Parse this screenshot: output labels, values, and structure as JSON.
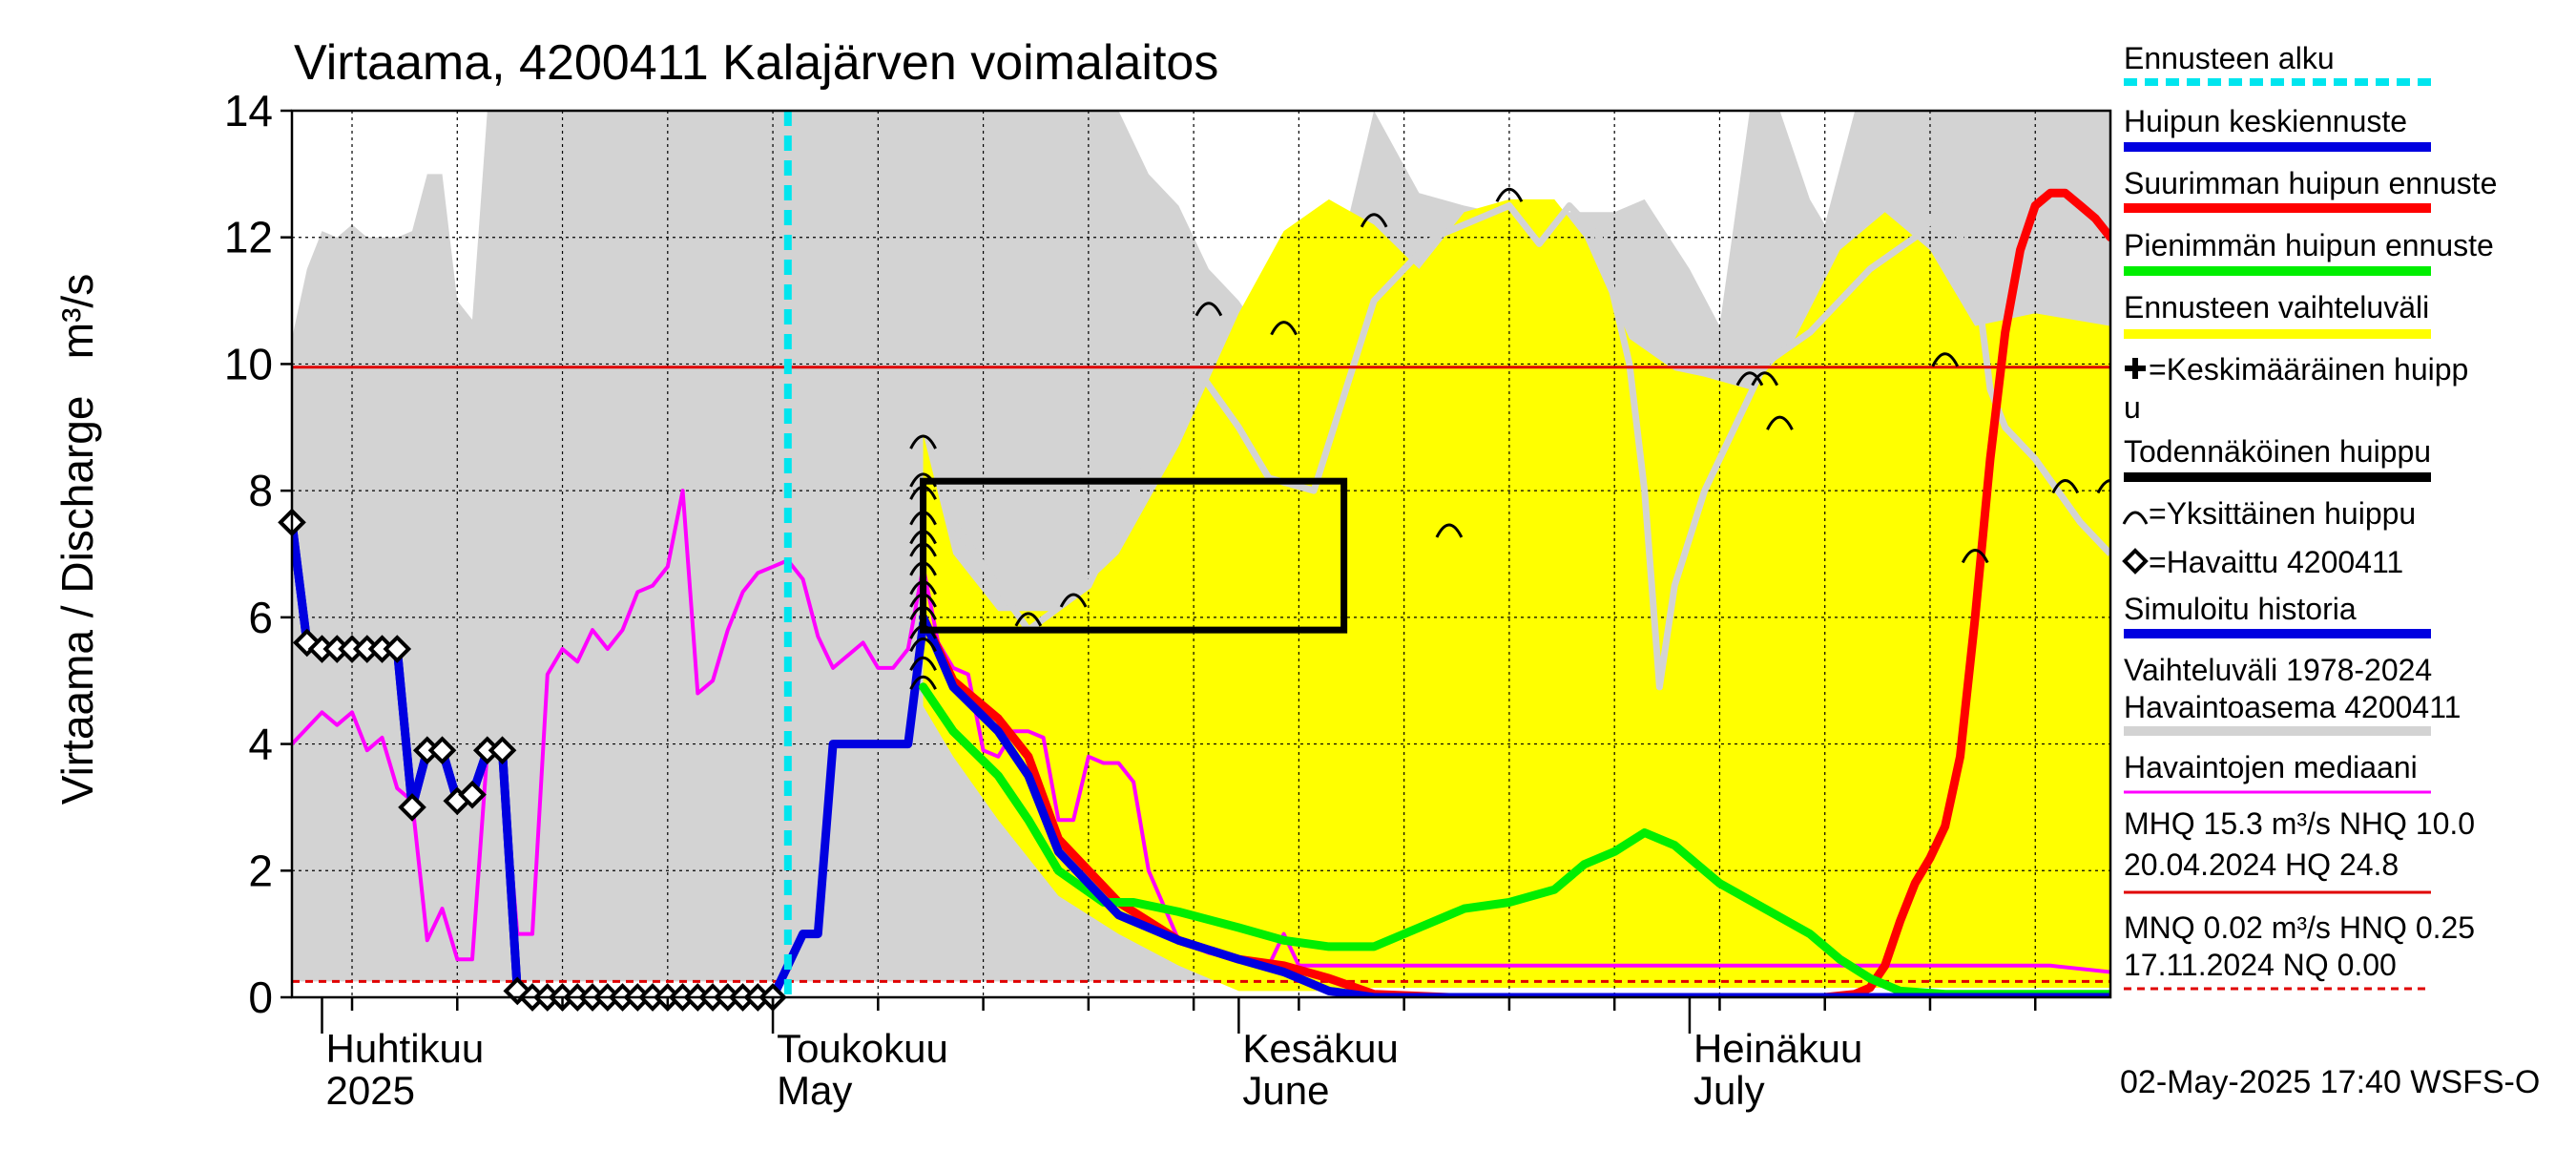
{
  "chart_data": {
    "type": "line",
    "title": "Virtaama, 4200411 Kalajärven voimalaitos",
    "ylabel": "Virtaama / Discharge   m³/s",
    "ylim": [
      0,
      14
    ],
    "yticks": [
      0,
      2,
      4,
      6,
      8,
      10,
      12,
      14
    ],
    "xlim": [
      "2025-03-30",
      "2025-07-29"
    ],
    "month_labels": [
      {
        "date": "2025-04-01",
        "fi": "Huhtikuu",
        "en": "2025"
      },
      {
        "date": "2025-05-01",
        "fi": "Toukokuu",
        "en": "May"
      },
      {
        "date": "2025-06-01",
        "fi": "Kesäkuu",
        "en": "June"
      },
      {
        "date": "2025-07-01",
        "fi": "Heinäkuu",
        "en": "July"
      }
    ],
    "grid": true,
    "reference_lines": [
      {
        "name": "MHQ 15.3 m³/s NHQ 10.0",
        "value": 9.95,
        "color": "#e00000",
        "style": "solid"
      },
      {
        "name": "MNQ 0.02 m³/s HNQ 0.25",
        "value": 0.25,
        "color": "#e00000",
        "style": "dashed"
      }
    ],
    "forecast_start": "2025-05-02",
    "likely_peak_box": {
      "x0": "2025-05-11",
      "x1": "2025-06-08",
      "y0": 5.8,
      "y1": 8.15
    },
    "observation_band_1978_2024": {
      "x": [
        "2025-03-30",
        "2025-03-31",
        "2025-04-01",
        "2025-04-02",
        "2025-04-03",
        "2025-04-04",
        "2025-04-05",
        "2025-04-06",
        "2025-04-07",
        "2025-04-08",
        "2025-04-09",
        "2025-04-10",
        "2025-04-11",
        "2025-04-12",
        "2025-04-13",
        "2025-04-14",
        "2025-04-15",
        "2025-04-20",
        "2025-04-25",
        "2025-05-01",
        "2025-05-05",
        "2025-05-10",
        "2025-05-15",
        "2025-05-20",
        "2025-05-24",
        "2025-05-26",
        "2025-05-28",
        "2025-05-30",
        "2025-06-01",
        "2025-06-03",
        "2025-06-05",
        "2025-06-08",
        "2025-06-10",
        "2025-06-13",
        "2025-06-16",
        "2025-06-18",
        "2025-06-20",
        "2025-06-22",
        "2025-06-24",
        "2025-06-26",
        "2025-06-28",
        "2025-07-01",
        "2025-07-03",
        "2025-07-05",
        "2025-07-07",
        "2025-07-09",
        "2025-07-10",
        "2025-07-12",
        "2025-07-15",
        "2025-07-18",
        "2025-07-21",
        "2025-07-24",
        "2025-07-27",
        "2025-07-29"
      ],
      "max": [
        10.4,
        11.5,
        12.1,
        12.0,
        12.2,
        12.0,
        12.0,
        12.0,
        12.1,
        13.0,
        13.0,
        11.0,
        10.7,
        14.0,
        14.0,
        14.0,
        14.0,
        14.0,
        14.0,
        14.0,
        14.0,
        14.0,
        14.0,
        14.0,
        14.0,
        13.0,
        12.5,
        11.5,
        11.0,
        10.3,
        10.3,
        12.0,
        14.0,
        12.7,
        12.5,
        12.4,
        12.5,
        12.4,
        12.4,
        12.4,
        12.6,
        11.5,
        10.6,
        14.0,
        14.0,
        12.6,
        12.2,
        14.0,
        14.0,
        14.0,
        14.0,
        14.0,
        14.0,
        14.0
      ],
      "min": [
        0.25,
        0.25,
        0.25,
        0.25,
        0.25,
        0.25,
        0.25,
        0.25,
        0.25,
        0.25,
        0.25,
        0.25,
        0.25,
        0.25,
        0.25,
        0.25,
        0.25,
        0.25,
        0.25,
        0.25,
        0.25,
        0.25,
        0.25,
        0.25,
        0.25,
        0.25,
        0.25,
        0.25,
        0.25,
        0.25,
        0.25,
        0.25,
        0.25,
        0.25,
        0.25,
        0.25,
        0.25,
        0.25,
        0.25,
        0.25,
        0.25,
        0.25,
        0.25,
        0.25,
        0.25,
        0.25,
        0.25,
        0.25,
        0.25,
        0.25,
        0.25,
        0.25,
        0.25,
        0.25
      ]
    },
    "forecast_band": {
      "x": [
        "2025-05-11",
        "2025-05-13",
        "2025-05-16",
        "2025-05-20",
        "2025-05-24",
        "2025-05-28",
        "2025-06-01",
        "2025-06-04",
        "2025-06-07",
        "2025-06-10",
        "2025-06-13",
        "2025-06-16",
        "2025-06-19",
        "2025-06-22",
        "2025-06-24",
        "2025-06-27",
        "2025-06-30",
        "2025-07-02",
        "2025-07-05",
        "2025-07-08",
        "2025-07-11",
        "2025-07-14",
        "2025-07-17",
        "2025-07-20",
        "2025-07-24",
        "2025-07-29"
      ],
      "max": [
        8.9,
        7.0,
        6.1,
        6.1,
        7.0,
        8.7,
        10.8,
        12.1,
        12.6,
        12.2,
        11.5,
        12.4,
        12.6,
        12.6,
        12.0,
        10.4,
        9.9,
        9.8,
        9.6,
        10.4,
        11.8,
        12.4,
        11.8,
        10.6,
        10.8,
        10.6
      ],
      "min": [
        4.6,
        3.8,
        2.8,
        1.6,
        1.0,
        0.5,
        0.1,
        0.1,
        0.1,
        0.15,
        0.15,
        0.15,
        0.15,
        0.15,
        0.15,
        0.15,
        0.15,
        0.15,
        0.15,
        0.15,
        0.15,
        0.15,
        0.15,
        0.15,
        0.15,
        0.15
      ]
    },
    "gray_mean_line": {
      "x": [
        "2025-05-13",
        "2025-05-18",
        "2025-05-22",
        "2025-05-26",
        "2025-05-29",
        "2025-06-01",
        "2025-06-03",
        "2025-06-06",
        "2025-06-10",
        "2025-06-14",
        "2025-06-17",
        "2025-06-19",
        "2025-06-21",
        "2025-06-23",
        "2025-06-25",
        "2025-06-26",
        "2025-06-27",
        "2025-06-28",
        "2025-06-29",
        "2025-06-30",
        "2025-07-02",
        "2025-07-04",
        "2025-07-06",
        "2025-07-09",
        "2025-07-13",
        "2025-07-16",
        "2025-07-18",
        "2025-07-20",
        "2025-07-21",
        "2025-07-22",
        "2025-07-24",
        "2025-07-27",
        "2025-07-29"
      ],
      "y": [
        7.5,
        5.8,
        6.5,
        8.5,
        10.0,
        9.0,
        8.2,
        8.0,
        11.0,
        12.0,
        12.3,
        12.5,
        11.9,
        12.5,
        12.0,
        11.0,
        10.0,
        8.0,
        4.9,
        6.5,
        8.0,
        9.0,
        10.0,
        10.5,
        11.5,
        12.0,
        12.5,
        11.5,
        9.6,
        9.0,
        8.5,
        7.5,
        7.0
      ]
    },
    "individual_peaks": {
      "x": [
        "2025-05-11",
        "2025-05-11",
        "2025-05-11",
        "2025-05-11",
        "2025-05-11",
        "2025-05-11",
        "2025-05-11",
        "2025-05-11",
        "2025-05-11",
        "2025-05-11",
        "2025-05-11",
        "2025-05-11",
        "2025-05-11",
        "2025-05-11",
        "2025-05-18",
        "2025-05-21",
        "2025-05-30",
        "2025-06-04",
        "2025-06-10",
        "2025-06-15",
        "2025-06-19",
        "2025-07-05",
        "2025-07-06",
        "2025-07-07",
        "2025-07-18",
        "2025-07-20",
        "2025-07-26",
        "2025-07-29"
      ],
      "y": [
        8.8,
        8.2,
        8.0,
        7.6,
        7.3,
        7.1,
        6.8,
        6.5,
        6.3,
        6.1,
        5.8,
        5.6,
        5.3,
        5.0,
        6.0,
        6.3,
        10.9,
        10.6,
        12.3,
        7.4,
        12.7,
        9.8,
        9.8,
        9.1,
        10.1,
        7.0,
        8.1,
        8.1
      ]
    },
    "series": [
      {
        "name": "Havaittu 4200411",
        "x": [
          "2025-03-30",
          "2025-03-31",
          "2025-04-01",
          "2025-04-02",
          "2025-04-03",
          "2025-04-04",
          "2025-04-05",
          "2025-04-06",
          "2025-04-07",
          "2025-04-08",
          "2025-04-09",
          "2025-04-10",
          "2025-04-11",
          "2025-04-12",
          "2025-04-13",
          "2025-04-14",
          "2025-04-15",
          "2025-04-16",
          "2025-04-17",
          "2025-04-18",
          "2025-04-19",
          "2025-04-20",
          "2025-04-21",
          "2025-04-22",
          "2025-04-23",
          "2025-04-24",
          "2025-04-25",
          "2025-04-26",
          "2025-04-27",
          "2025-04-28",
          "2025-04-29",
          "2025-04-30",
          "2025-05-01"
        ],
        "y": [
          7.5,
          5.6,
          5.5,
          5.5,
          5.5,
          5.5,
          5.5,
          5.5,
          3.0,
          3.9,
          3.9,
          3.1,
          3.2,
          3.9,
          3.9,
          0.1,
          0.0,
          0.0,
          0.0,
          0.0,
          0.0,
          0.0,
          0.0,
          0.0,
          0.0,
          0.0,
          0.0,
          0.0,
          0.0,
          0.0,
          0.0,
          0.0,
          0.0
        ],
        "color": "#0000e0"
      },
      {
        "name": "Simuloitu historia",
        "x": [
          "2025-03-30",
          "2025-03-31",
          "2025-04-01",
          "2025-04-02",
          "2025-04-03",
          "2025-04-04",
          "2025-04-05",
          "2025-04-06",
          "2025-04-07",
          "2025-04-08",
          "2025-04-09",
          "2025-04-10",
          "2025-04-11",
          "2025-04-12",
          "2025-04-13",
          "2025-04-14",
          "2025-04-15",
          "2025-04-20",
          "2025-04-25",
          "2025-05-01",
          "2025-05-02",
          "2025-05-03",
          "2025-05-04",
          "2025-05-05",
          "2025-05-08",
          "2025-05-10",
          "2025-05-11"
        ],
        "y": [
          7.5,
          5.6,
          5.5,
          5.5,
          5.5,
          5.5,
          5.5,
          5.5,
          3.0,
          3.9,
          3.9,
          3.1,
          3.2,
          3.9,
          3.9,
          0.1,
          0.0,
          0.0,
          0.0,
          0.0,
          0.5,
          1.0,
          1.0,
          4.0,
          4.0,
          4.0,
          5.9
        ],
        "color": "#0000e0"
      },
      {
        "name": "Havaintojen mediaani",
        "x": [
          "2025-03-30",
          "2025-04-01",
          "2025-04-02",
          "2025-04-03",
          "2025-04-04",
          "2025-04-05",
          "2025-04-06",
          "2025-04-07",
          "2025-04-08",
          "2025-04-09",
          "2025-04-10",
          "2025-04-11",
          "2025-04-12",
          "2025-04-13",
          "2025-04-14",
          "2025-04-15",
          "2025-04-16",
          "2025-04-17",
          "2025-04-18",
          "2025-04-19",
          "2025-04-20",
          "2025-04-21",
          "2025-04-22",
          "2025-04-23",
          "2025-04-24",
          "2025-04-25",
          "2025-04-26",
          "2025-04-27",
          "2025-04-28",
          "2025-04-29",
          "2025-04-30",
          "2025-05-01",
          "2025-05-02",
          "2025-05-03",
          "2025-05-04",
          "2025-05-05",
          "2025-05-06",
          "2025-05-07",
          "2025-05-08",
          "2025-05-09",
          "2025-05-10",
          "2025-05-11",
          "2025-05-12",
          "2025-05-13",
          "2025-05-14",
          "2025-05-15",
          "2025-05-16",
          "2025-05-17",
          "2025-05-18",
          "2025-05-19",
          "2025-05-20",
          "2025-05-21",
          "2025-05-22",
          "2025-05-23",
          "2025-05-24",
          "2025-05-25",
          "2025-05-26",
          "2025-05-28",
          "2025-05-30",
          "2025-06-01",
          "2025-06-03",
          "2025-06-04",
          "2025-06-05",
          "2025-06-10",
          "2025-06-20",
          "2025-07-01",
          "2025-07-10",
          "2025-07-15",
          "2025-07-20",
          "2025-07-25",
          "2025-07-29"
        ],
        "y": [
          4.0,
          4.5,
          4.3,
          4.5,
          3.9,
          4.1,
          3.3,
          3.1,
          0.9,
          1.4,
          0.6,
          0.6,
          3.9,
          3.8,
          1.0,
          1.0,
          5.1,
          5.5,
          5.3,
          5.8,
          5.5,
          5.8,
          6.4,
          6.5,
          6.8,
          8.0,
          4.8,
          5.0,
          5.8,
          6.4,
          6.7,
          6.8,
          6.9,
          6.6,
          5.7,
          5.2,
          5.4,
          5.6,
          5.2,
          5.2,
          5.5,
          6.8,
          5.6,
          5.2,
          5.1,
          3.9,
          3.8,
          4.2,
          4.2,
          4.1,
          2.8,
          2.8,
          3.8,
          3.7,
          3.7,
          3.4,
          2.0,
          0.9,
          0.7,
          0.6,
          0.5,
          1.0,
          0.5,
          0.5,
          0.5,
          0.5,
          0.5,
          0.5,
          0.5,
          0.5,
          0.4
        ],
        "color": "#ff00ff"
      },
      {
        "name": "Suurimman huipun ennuste",
        "x": [
          "2025-05-11",
          "2025-05-13",
          "2025-05-16",
          "2025-05-18",
          "2025-05-20",
          "2025-05-24",
          "2025-05-28",
          "2025-06-01",
          "2025-06-04",
          "2025-06-07",
          "2025-06-10",
          "2025-06-15",
          "2025-06-20",
          "2025-06-25",
          "2025-07-01",
          "2025-07-05",
          "2025-07-10",
          "2025-07-12",
          "2025-07-13",
          "2025-07-14",
          "2025-07-15",
          "2025-07-16",
          "2025-07-17",
          "2025-07-18",
          "2025-07-19",
          "2025-07-20",
          "2025-07-21",
          "2025-07-22",
          "2025-07-23",
          "2025-07-24",
          "2025-07-25",
          "2025-07-26",
          "2025-07-27",
          "2025-07-28",
          "2025-07-29"
        ],
        "y": [
          6.0,
          5.0,
          4.4,
          3.8,
          2.5,
          1.5,
          0.9,
          0.6,
          0.5,
          0.3,
          0.05,
          0.0,
          0.0,
          0.0,
          0.0,
          0.0,
          0.0,
          0.05,
          0.15,
          0.5,
          1.2,
          1.8,
          2.2,
          2.7,
          3.8,
          6.0,
          8.5,
          10.5,
          11.8,
          12.5,
          12.7,
          12.7,
          12.5,
          12.3,
          12.0
        ],
        "color": "#ff0000"
      },
      {
        "name": "Pienimmän huipun ennuste",
        "x": [
          "2025-05-11",
          "2025-05-13",
          "2025-05-16",
          "2025-05-18",
          "2025-05-20",
          "2025-05-23",
          "2025-05-25",
          "2025-05-28",
          "2025-06-01",
          "2025-06-04",
          "2025-06-07",
          "2025-06-10",
          "2025-06-13",
          "2025-06-16",
          "2025-06-19",
          "2025-06-22",
          "2025-06-24",
          "2025-06-26",
          "2025-06-28",
          "2025-06-30",
          "2025-07-03",
          "2025-07-06",
          "2025-07-09",
          "2025-07-11",
          "2025-07-13",
          "2025-07-15",
          "2025-07-18",
          "2025-07-22",
          "2025-07-29"
        ],
        "y": [
          4.9,
          4.2,
          3.5,
          2.8,
          2.0,
          1.5,
          1.5,
          1.35,
          1.1,
          0.9,
          0.8,
          0.8,
          1.1,
          1.4,
          1.5,
          1.7,
          2.1,
          2.3,
          2.6,
          2.4,
          1.8,
          1.4,
          1.0,
          0.6,
          0.3,
          0.1,
          0.05,
          0.05,
          0.05
        ],
        "color": "#00ee00"
      },
      {
        "name": "Huipun keskiennuste",
        "x": [
          "2025-05-11",
          "2025-05-13",
          "2025-05-16",
          "2025-05-18",
          "2025-05-20",
          "2025-05-24",
          "2025-05-28",
          "2025-06-01",
          "2025-06-04",
          "2025-06-07",
          "2025-06-10",
          "2025-06-20",
          "2025-07-01",
          "2025-07-10",
          "2025-07-20",
          "2025-07-29"
        ],
        "y": [
          6.0,
          4.9,
          4.2,
          3.5,
          2.3,
          1.3,
          0.9,
          0.6,
          0.4,
          0.1,
          0.0,
          0.0,
          0.0,
          0.0,
          0.0,
          0.0
        ],
        "color": "#0000e0"
      }
    ],
    "legend": {
      "placement": "right",
      "entries": [
        {
          "label": "Ennusteen alku",
          "color": "#00e5ee",
          "kind": "dashed"
        },
        {
          "label": "Huipun keskiennuste",
          "color": "#0000e0",
          "kind": "line"
        },
        {
          "label": "Suurimman huipun ennuste",
          "color": "#ff0000",
          "kind": "line"
        },
        {
          "label": "Pienimmän huipun ennuste",
          "color": "#00ee00",
          "kind": "line"
        },
        {
          "label": "Ennusteen vaihteluväli",
          "color": "#ffff00",
          "kind": "line"
        },
        {
          "label": "=Keskimääräinen huipp",
          "label2": "u",
          "color": "#000000",
          "kind": "cross"
        },
        {
          "label": "Todennäköinen huippu",
          "color": "#000000",
          "kind": "line"
        },
        {
          "label": "=Yksittäinen huippu",
          "color": "#000000",
          "kind": "arc"
        },
        {
          "label": "=Havaittu 4200411",
          "color": "#000000",
          "kind": "diamond"
        },
        {
          "label": "Simuloitu historia",
          "color": "#0000e0",
          "kind": "line"
        },
        {
          "label": "Vaihteluväli 1978-2024",
          "label2": " Havaintoasema 4200411",
          "color": "#d3d3d3",
          "kind": "line"
        },
        {
          "label": "Havaintojen mediaani",
          "color": "#ff00ff",
          "kind": "thin"
        },
        {
          "label": "MHQ 15.3 m³/s NHQ 10.0",
          "label2": "20.04.2024 HQ 24.8",
          "color": "#e00000",
          "kind": "thin"
        },
        {
          "label": "MNQ 0.02 m³/s HNQ 0.25",
          "label2": "17.11.2024 NQ 0.00",
          "color": "#e00000",
          "kind": "dashedthin"
        }
      ]
    },
    "footer": "02-May-2025 17:40 WSFS-O"
  }
}
